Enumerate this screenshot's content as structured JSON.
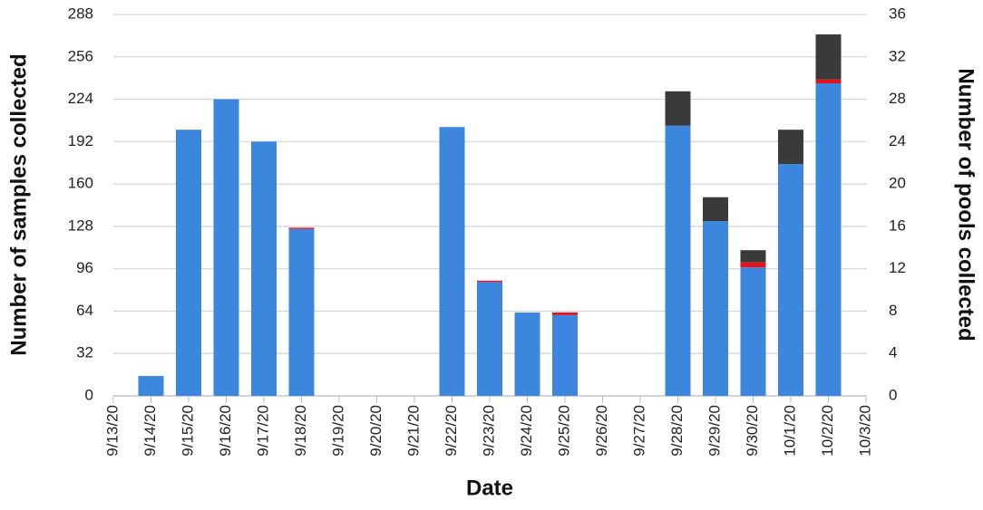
{
  "chart_data": {
    "type": "stacked_bar",
    "xlabel": "Date",
    "ylabel": "Number of samples collected",
    "y2label": "Number of pools collected",
    "categories": [
      "9/13/20",
      "9/14/20",
      "9/15/20",
      "9/16/20",
      "9/17/20",
      "9/18/20",
      "9/19/20",
      "9/20/20",
      "9/21/20",
      "9/22/20",
      "9/23/20",
      "9/24/20",
      "9/25/20",
      "9/26/20",
      "9/27/20",
      "9/28/20",
      "9/29/20",
      "9/30/20",
      "10/1/20",
      "10/2/20",
      "10/3/20"
    ],
    "series": [
      {
        "color": "#3c87dd",
        "values": [
          null,
          15,
          201,
          224,
          192,
          126,
          null,
          null,
          null,
          203,
          86,
          63,
          61,
          null,
          null,
          204,
          132,
          97,
          175,
          236,
          null
        ]
      },
      {
        "color": "#e0141e",
        "values": [
          null,
          null,
          null,
          null,
          null,
          1,
          null,
          null,
          null,
          null,
          1,
          null,
          2,
          null,
          null,
          null,
          null,
          4,
          null,
          3,
          null
        ]
      },
      {
        "color": "#3a3a3a",
        "values": [
          null,
          null,
          null,
          null,
          null,
          null,
          null,
          null,
          null,
          null,
          null,
          null,
          null,
          null,
          null,
          26,
          18,
          9,
          26,
          34,
          null
        ]
      }
    ],
    "ylim": [
      0,
      288
    ],
    "yticks": [
      0,
      32,
      64,
      96,
      128,
      160,
      192,
      224,
      256,
      288
    ],
    "y2lim": [
      0,
      36
    ],
    "y2ticks": [
      0,
      4,
      8,
      12,
      16,
      20,
      24,
      28,
      32,
      36
    ],
    "grid": true
  }
}
